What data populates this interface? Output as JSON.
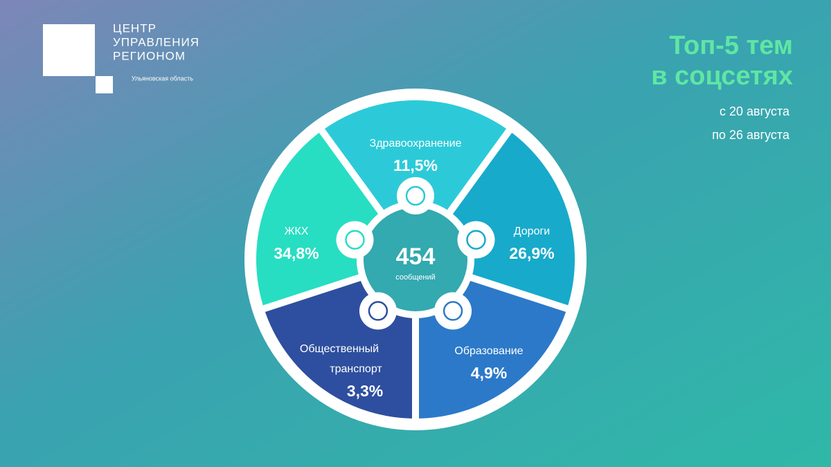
{
  "header": {
    "logo_lines": [
      "ЦЕНТР",
      "УПРАВЛЕНИЯ",
      "РЕГИОНОМ"
    ],
    "logo_subtitle": "Ульяновская область",
    "title_lines": [
      "Топ-5 тем",
      "в соцсетях"
    ],
    "period_lines": [
      "с 20 августа",
      "по 26 августа"
    ]
  },
  "center": {
    "total": "454",
    "caption": "сообщений"
  },
  "segments": [
    {
      "label_lines": [
        "Здравоохранение"
      ],
      "value": "11,5%"
    },
    {
      "label_lines": [
        "Дороги"
      ],
      "value": "26,9%"
    },
    {
      "label_lines": [
        "Образование"
      ],
      "value": "4,9%"
    },
    {
      "label_lines": [
        "Общественный",
        "транспорт"
      ],
      "value": "3,3%"
    },
    {
      "label_lines": [
        "ЖКХ"
      ],
      "value": "34,8%"
    }
  ]
}
